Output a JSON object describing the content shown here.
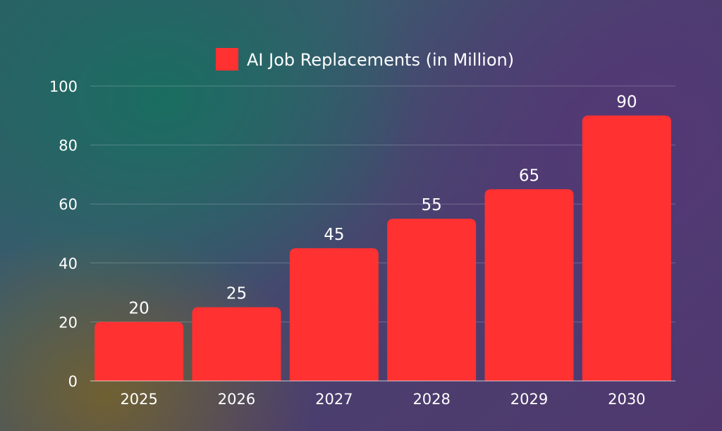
{
  "chart_data": {
    "type": "bar",
    "title": "",
    "xlabel": "",
    "ylabel": "",
    "categories": [
      "2025",
      "2026",
      "2027",
      "2028",
      "2029",
      "2030"
    ],
    "series": [
      {
        "name": "AI Job Replacements (in Million)",
        "values": [
          20,
          25,
          45,
          55,
          65,
          90
        ],
        "color": "#ff3131"
      }
    ],
    "ylim": [
      0,
      100
    ],
    "yticks": [
      "0",
      "20",
      "40",
      "60",
      "80",
      "100"
    ],
    "data_labels": [
      "20",
      "25",
      "45",
      "55",
      "65",
      "90"
    ],
    "grid": true,
    "legend_position": "top-center"
  }
}
